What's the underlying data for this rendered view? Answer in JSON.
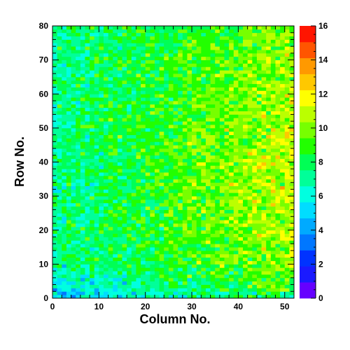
{
  "chart_data": {
    "type": "heatmap",
    "xlabel": "Column No.",
    "ylabel": "Row No.",
    "xlim": [
      0,
      52
    ],
    "ylim": [
      0,
      80
    ],
    "x_ticks": [
      0,
      10,
      20,
      30,
      40,
      50
    ],
    "y_ticks": [
      0,
      10,
      20,
      30,
      40,
      50,
      60,
      70,
      80
    ],
    "colorbar": {
      "range": [
        0,
        16
      ],
      "ticks": [
        0,
        2,
        4,
        6,
        8,
        10,
        12,
        14,
        16
      ]
    },
    "grid": false,
    "legend": "colorbar right",
    "n_columns": 52,
    "n_rows": 80,
    "value_trend_note_free": true,
    "palette": [
      "#6600ff",
      "#1a1aff",
      "#0033ff",
      "#0077ff",
      "#00aaff",
      "#00ddff",
      "#00ffe0",
      "#00ff99",
      "#00ff55",
      "#22ff00",
      "#77ff00",
      "#bbff00",
      "#ffff00",
      "#ffc800",
      "#ff9900",
      "#ff5500",
      "#ff1500"
    ]
  }
}
